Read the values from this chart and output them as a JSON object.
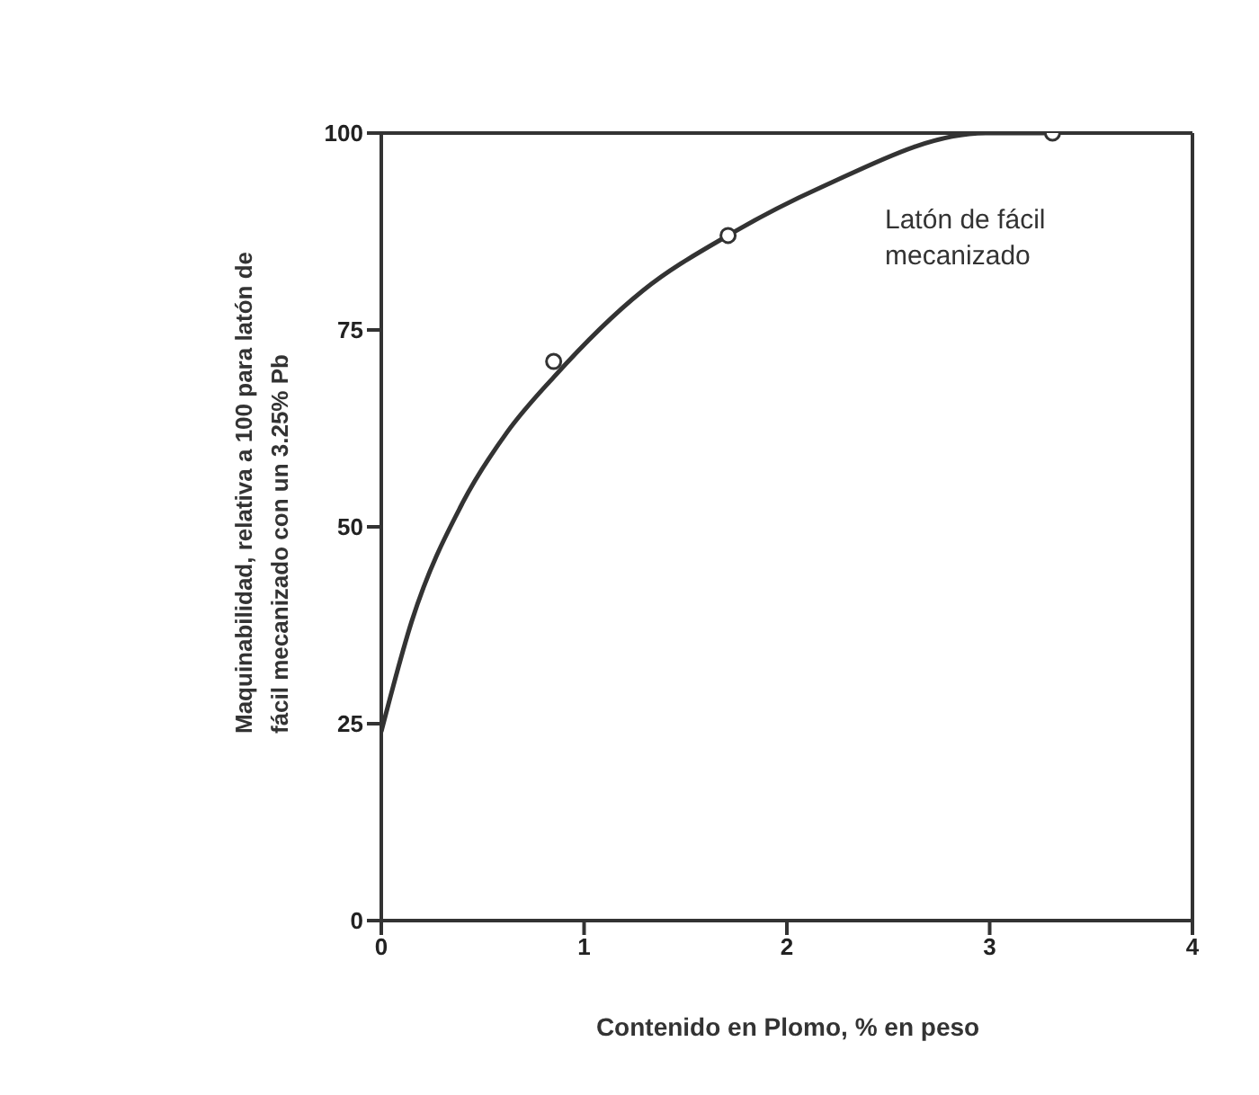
{
  "chart_data": {
    "type": "line",
    "xlabel": "Contenido en Plomo, % en peso",
    "ylabel": "Maquinabilidad, relativa a 100 para latón de fácil mecanizado con un 3.25% Pb",
    "annotations": [
      "Latón de fácil mecanizado"
    ],
    "series": [
      {
        "color": "#333333",
        "x": [
          0,
          0.15,
          0.4,
          0.62,
          0.85,
          1.29,
          1.71,
          2.16,
          2.98,
          3.31
        ],
        "values": [
          24,
          38,
          53,
          62,
          69,
          80,
          87,
          93,
          100,
          100
        ],
        "marker": "none"
      },
      {
        "type": "scatter",
        "color": "#333333",
        "x": [
          0.85,
          1.71,
          3.31
        ],
        "values": [
          71,
          87,
          100
        ],
        "marker": "circle"
      }
    ],
    "xlim": [
      0,
      4
    ],
    "xticks": [
      0,
      1,
      2,
      3,
      4
    ],
    "ylim": [
      0,
      100
    ],
    "yticks": [
      0,
      25,
      50,
      75,
      100
    ]
  }
}
